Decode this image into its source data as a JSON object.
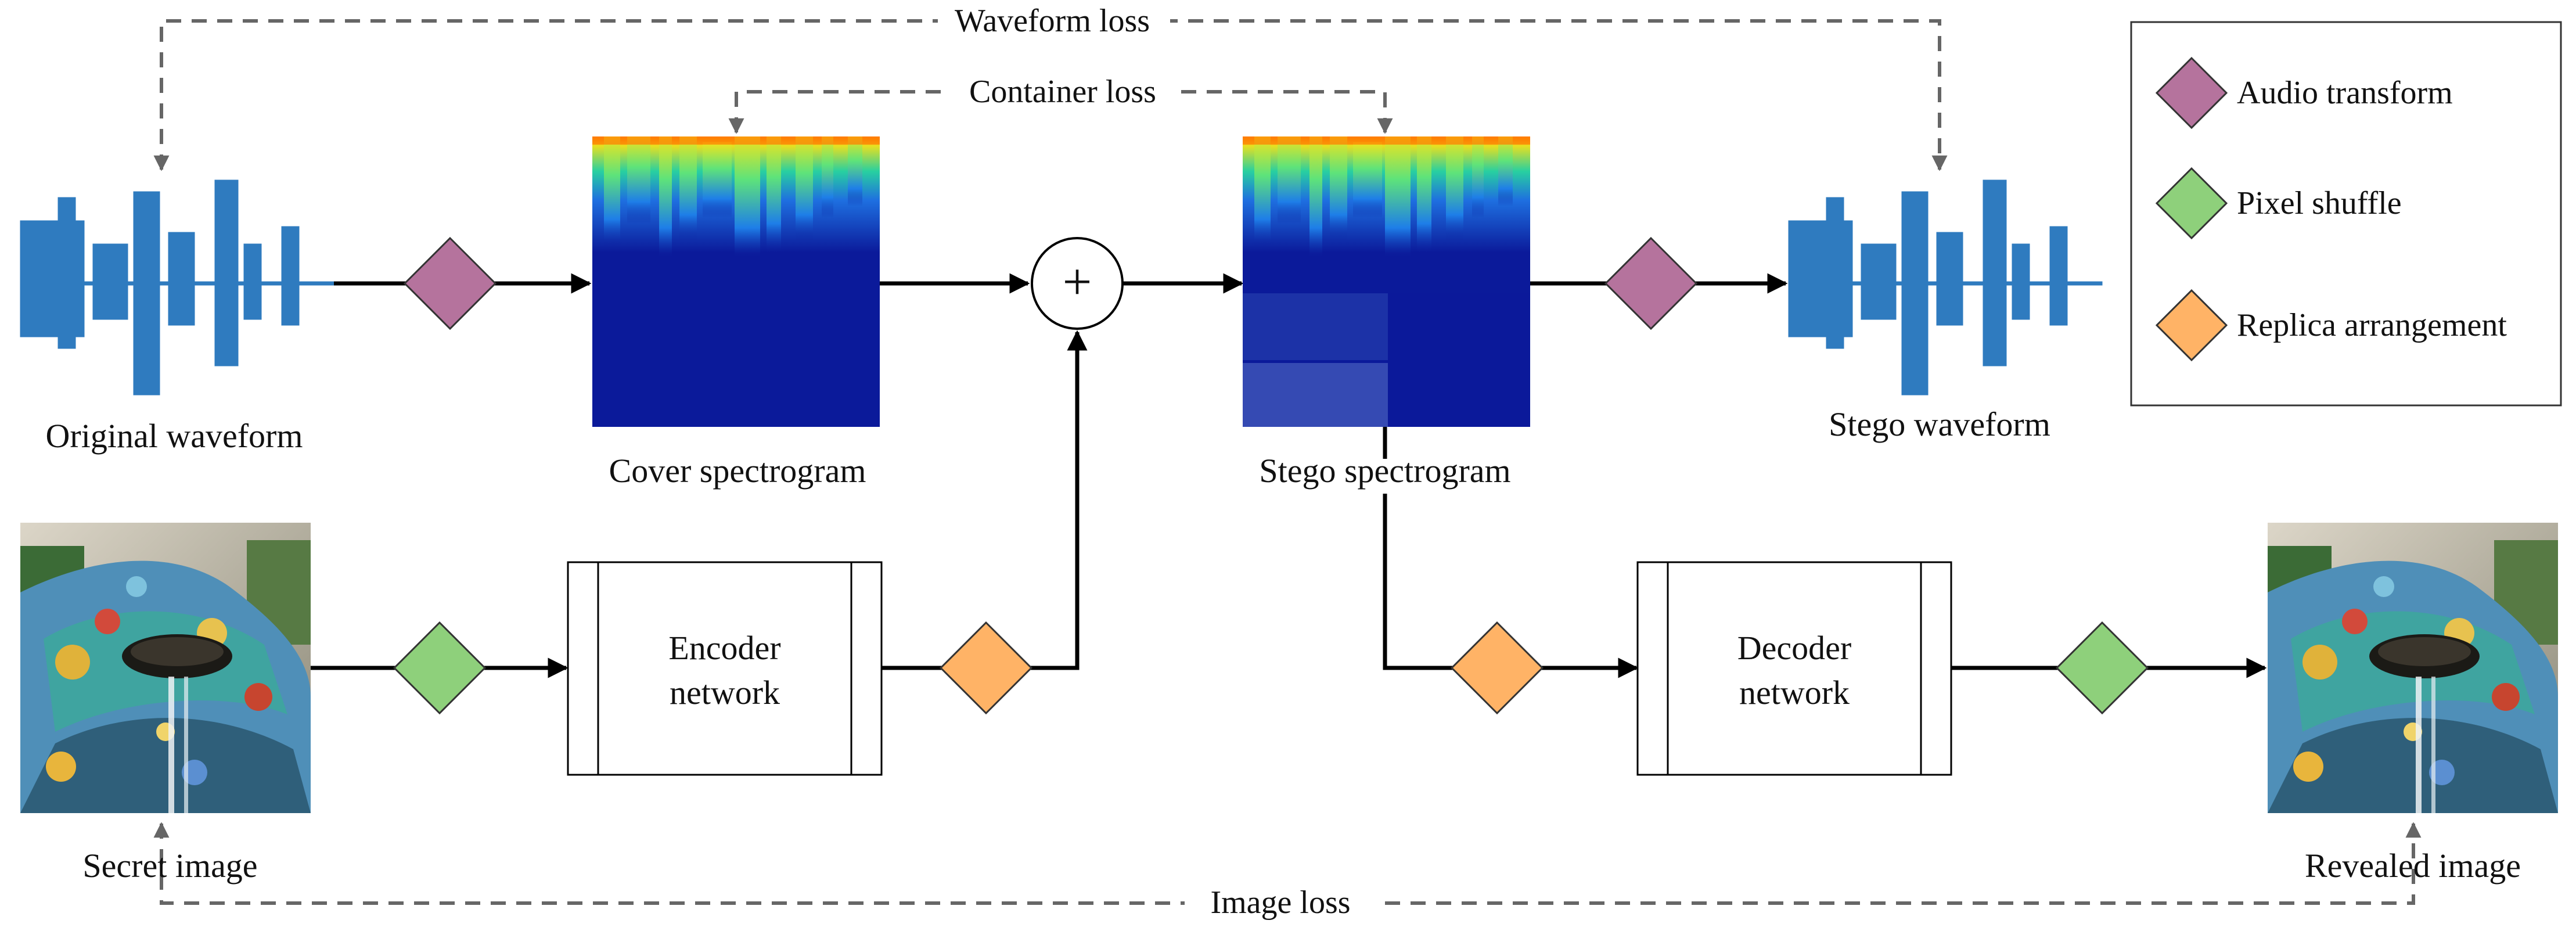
{
  "losses": {
    "waveform": "Waveform loss",
    "container": "Container loss",
    "image": "Image loss"
  },
  "labels": {
    "original_waveform": "Original waveform",
    "cover_spectrogram": "Cover spectrogram",
    "stego_spectrogram": "Stego spectrogram",
    "stego_waveform": "Stego waveform",
    "secret_image": "Secret image",
    "revealed_image": "Revealed image"
  },
  "networks": {
    "encoder": [
      "Encoder",
      "network"
    ],
    "decoder": [
      "Decoder",
      "network"
    ]
  },
  "operator_symbol": "+",
  "legend": {
    "items": [
      {
        "label": "Audio transform",
        "color": "#b5739d",
        "icon": "purple-diamond-icon"
      },
      {
        "label": "Pixel shuffle",
        "color": "#8ed07b",
        "icon": "green-diamond-icon"
      },
      {
        "label": "Replica arrangement",
        "color": "#ffb366",
        "icon": "orange-diamond-icon"
      }
    ]
  },
  "colors": {
    "audio_transform": "#b5739d",
    "pixel_shuffle": "#8ed07b",
    "replica_arrangement": "#ffb366",
    "waveform": "#2f7bbf",
    "loss_line": "#666666",
    "spectrogram_base": "#0b1a9a"
  }
}
